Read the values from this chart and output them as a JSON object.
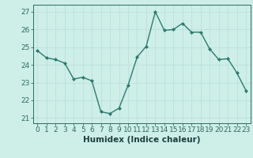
{
  "x": [
    0,
    1,
    2,
    3,
    4,
    5,
    6,
    7,
    8,
    9,
    10,
    11,
    12,
    13,
    14,
    15,
    16,
    17,
    18,
    19,
    20,
    21,
    22,
    23
  ],
  "y": [
    24.8,
    24.4,
    24.3,
    24.1,
    23.2,
    23.3,
    23.1,
    21.35,
    21.25,
    21.55,
    22.85,
    24.45,
    25.05,
    27.0,
    25.95,
    26.0,
    26.35,
    25.85,
    25.85,
    24.9,
    24.3,
    24.35,
    23.55,
    22.55
  ],
  "line_color": "#2d7a6e",
  "marker": "D",
  "marker_size": 2.0,
  "linewidth": 1.0,
  "xlabel": "Humidex (Indice chaleur)",
  "xlabel_fontsize": 7.5,
  "ylabel_ticks": [
    21,
    22,
    23,
    24,
    25,
    26,
    27
  ],
  "xlim": [
    -0.5,
    23.5
  ],
  "ylim": [
    20.7,
    27.4
  ],
  "bg_color": "#ceeee8",
  "grid_color": "#b8ddd8",
  "tick_color": "#2d6b60",
  "tick_fontsize": 6.5,
  "label_color": "#1a4040"
}
